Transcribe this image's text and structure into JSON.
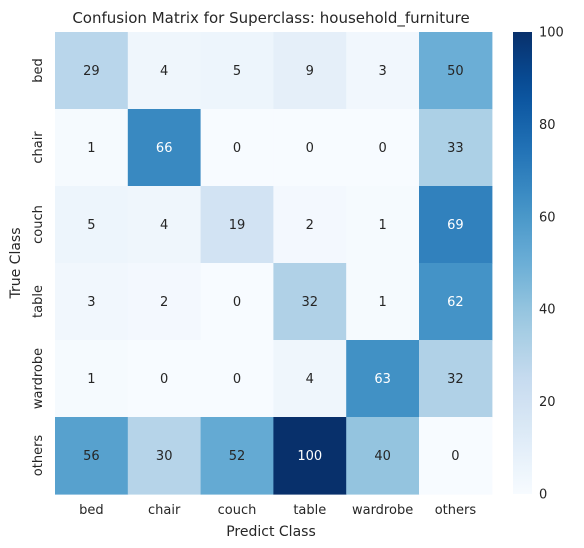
{
  "chart_data": {
    "type": "heatmap",
    "title": "Confusion Matrix for Superclass: household_furniture",
    "xlabel": "Predict Class",
    "ylabel": "True Class",
    "x_categories": [
      "bed",
      "chair",
      "couch",
      "table",
      "wardrobe",
      "others"
    ],
    "y_categories": [
      "bed",
      "chair",
      "couch",
      "table",
      "wardrobe",
      "others"
    ],
    "values": [
      [
        29,
        4,
        5,
        9,
        3,
        50
      ],
      [
        1,
        66,
        0,
        0,
        0,
        33
      ],
      [
        5,
        4,
        19,
        2,
        1,
        69
      ],
      [
        3,
        2,
        0,
        32,
        1,
        62
      ],
      [
        1,
        0,
        0,
        4,
        63,
        32
      ],
      [
        56,
        30,
        52,
        100,
        40,
        0
      ]
    ],
    "colormap": "Blues",
    "vmin": 0,
    "vmax": 100,
    "colorbar_ticks": [
      0,
      20,
      40,
      60,
      80,
      100
    ],
    "colorbar_tick_labels": [
      "0",
      "20",
      "40",
      "60",
      "80",
      "100"
    ]
  }
}
